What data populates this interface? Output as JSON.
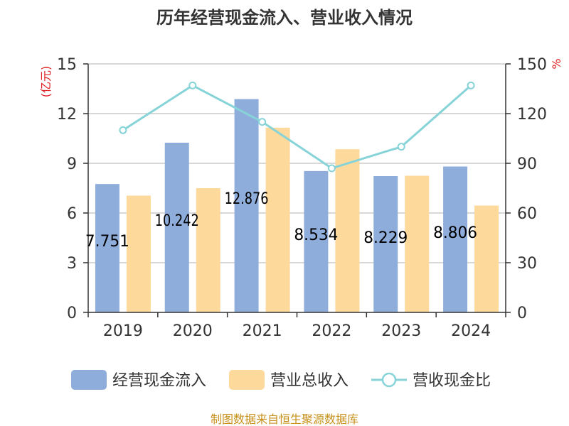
{
  "chart_data": {
    "type": "bar",
    "title": "历年经营现金流入、营业收入情况",
    "categories": [
      "2019",
      "2020",
      "2021",
      "2022",
      "2023",
      "2024"
    ],
    "series": [
      {
        "name": "经营现金流入",
        "type": "bar",
        "axis": "left",
        "values": [
          7.751,
          10.242,
          12.876,
          8.534,
          8.229,
          8.806
        ],
        "labels": [
          "7.751",
          "10.242",
          "12.876",
          "8.534",
          "8.229",
          "8.806"
        ],
        "color": "#8eaddb"
      },
      {
        "name": "营业总收入",
        "type": "bar",
        "axis": "left",
        "values": [
          7.05,
          7.5,
          11.15,
          9.85,
          8.25,
          6.45
        ],
        "color": "#fdd99b"
      },
      {
        "name": "营收现金比",
        "type": "line",
        "axis": "right",
        "values": [
          110,
          137,
          115,
          87,
          100,
          137
        ],
        "color": "#86d3d8"
      }
    ],
    "y_left": {
      "label": "(亿元)",
      "min": 0,
      "max": 15,
      "ticks": [
        "0",
        "3",
        "6",
        "9",
        "12",
        "15"
      ]
    },
    "y_right": {
      "label": "%",
      "min": 0,
      "max": 150,
      "ticks": [
        "0",
        "30",
        "60",
        "90",
        "120",
        "150"
      ]
    },
    "grid": true,
    "legend": "bottom"
  },
  "source_text": "制图数据来自恒生聚源数据库"
}
